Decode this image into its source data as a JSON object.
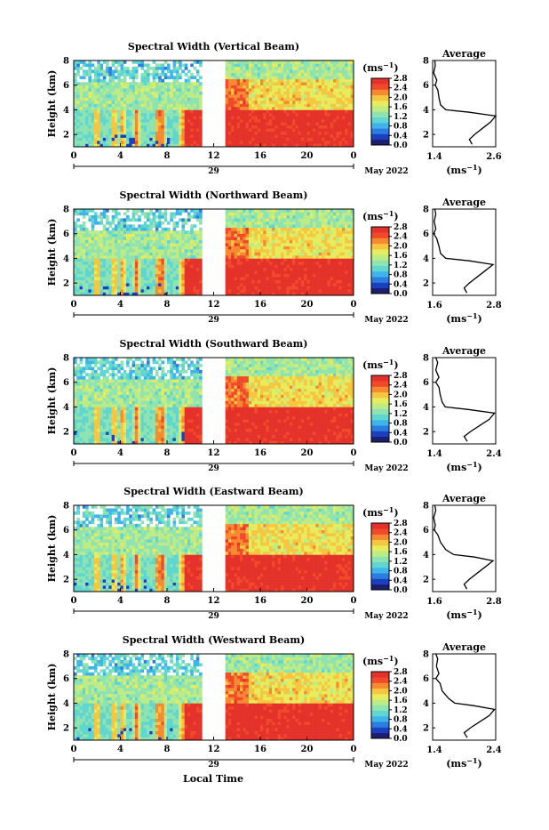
{
  "figure": {
    "xlabel": "Local Time",
    "date_label": "May 2022",
    "day_label": "29",
    "height_label": "Height (km)",
    "unit_label": "(ms",
    "unit_sup": "−1",
    "unit_close": ")",
    "avg_title": "Average"
  },
  "colors": {
    "scale": [
      "#1b1f6e",
      "#1a3fbf",
      "#2b7de0",
      "#3fb4ea",
      "#5fd6d0",
      "#8fe3b0",
      "#bdeb86",
      "#e6ec5c",
      "#f7c640",
      "#f68a30",
      "#f04a2a",
      "#e4322a"
    ],
    "missing": "#ffffff",
    "frame": "#000000"
  },
  "chart_data": [
    {
      "type": "heatmap",
      "title": "Spectral Width (Vertical Beam)",
      "x_ticks": [
        "0",
        "4",
        "8",
        "12",
        "16",
        "20",
        "0"
      ],
      "xlim": [
        0,
        24
      ],
      "y_ticks": [
        "2",
        "4",
        "6",
        "8"
      ],
      "ylim": [
        1,
        8
      ],
      "ylabel": "Height (km)",
      "xlabel": "Local Time",
      "gap_hours": [
        10.9,
        12.9
      ],
      "colorbar": {
        "ticks": [
          "0.0",
          "0.4",
          "0.8",
          "1.2",
          "1.6",
          "2.0",
          "2.4",
          "2.8"
        ],
        "range": [
          0,
          2.8
        ],
        "unit": "ms-1"
      },
      "average_profile": {
        "title": "Average",
        "x_ticks": [
          "1.4",
          "2.6"
        ],
        "xlim": [
          1.4,
          2.6
        ],
        "y_ticks": [
          "2",
          "4",
          "6",
          "8"
        ],
        "ylim": [
          1,
          8
        ],
        "points": [
          [
            2.15,
            1.2
          ],
          [
            2.1,
            1.6
          ],
          [
            2.2,
            2.0
          ],
          [
            2.35,
            2.5
          ],
          [
            2.5,
            3.0
          ],
          [
            2.6,
            3.5
          ],
          [
            2.1,
            3.8
          ],
          [
            1.65,
            4.0
          ],
          [
            1.55,
            4.4
          ],
          [
            1.52,
            5.0
          ],
          [
            1.5,
            5.6
          ],
          [
            1.45,
            6.0
          ],
          [
            1.48,
            6.4
          ],
          [
            1.42,
            7.0
          ],
          [
            1.45,
            7.6
          ],
          [
            1.44,
            8.0
          ]
        ]
      }
    },
    {
      "type": "heatmap",
      "title": "Spectral Width (Northward Beam)",
      "x_ticks": [
        "0",
        "4",
        "8",
        "12",
        "16",
        "20",
        "0"
      ],
      "xlim": [
        0,
        24
      ],
      "y_ticks": [
        "2",
        "4",
        "6",
        "8"
      ],
      "ylim": [
        1,
        8
      ],
      "ylabel": "Height (km)",
      "xlabel": "Local Time",
      "gap_hours": [
        10.9,
        12.9
      ],
      "colorbar": {
        "ticks": [
          "0.0",
          "0.4",
          "0.8",
          "1.2",
          "1.6",
          "2.0",
          "2.4",
          "2.8"
        ],
        "range": [
          0,
          2.8
        ],
        "unit": "ms-1"
      },
      "average_profile": {
        "title": "Average",
        "x_ticks": [
          "1.6",
          "2.8"
        ],
        "xlim": [
          1.6,
          2.8
        ],
        "y_ticks": [
          "2",
          "4",
          "6",
          "8"
        ],
        "ylim": [
          1,
          8
        ],
        "points": [
          [
            2.25,
            1.2
          ],
          [
            2.2,
            1.6
          ],
          [
            2.3,
            2.0
          ],
          [
            2.45,
            2.5
          ],
          [
            2.6,
            3.0
          ],
          [
            2.75,
            3.5
          ],
          [
            2.3,
            3.8
          ],
          [
            1.85,
            4.0
          ],
          [
            1.75,
            4.4
          ],
          [
            1.72,
            5.0
          ],
          [
            1.68,
            5.6
          ],
          [
            1.62,
            6.0
          ],
          [
            1.66,
            6.4
          ],
          [
            1.63,
            7.0
          ],
          [
            1.66,
            7.6
          ],
          [
            1.64,
            8.0
          ]
        ]
      }
    },
    {
      "type": "heatmap",
      "title": "Spectral Width (Southward Beam)",
      "x_ticks": [
        "0",
        "4",
        "8",
        "12",
        "16",
        "20",
        "0"
      ],
      "xlim": [
        0,
        24
      ],
      "y_ticks": [
        "2",
        "4",
        "6",
        "8"
      ],
      "ylim": [
        1,
        8
      ],
      "ylabel": "Height (km)",
      "xlabel": "Local Time",
      "gap_hours": [
        10.9,
        12.9
      ],
      "colorbar": {
        "ticks": [
          "0.0",
          "0.4",
          "0.8",
          "1.2",
          "1.6",
          "2.0",
          "2.4",
          "2.8"
        ],
        "range": [
          0,
          2.8
        ],
        "unit": "ms-1"
      },
      "average_profile": {
        "title": "Average",
        "x_ticks": [
          "1.4",
          "2.4"
        ],
        "xlim": [
          1.4,
          2.4
        ],
        "y_ticks": [
          "2",
          "4",
          "6",
          "8"
        ],
        "ylim": [
          1,
          8
        ],
        "points": [
          [
            1.95,
            1.2
          ],
          [
            1.9,
            1.6
          ],
          [
            2.0,
            2.0
          ],
          [
            2.15,
            2.5
          ],
          [
            2.3,
            3.0
          ],
          [
            2.38,
            3.5
          ],
          [
            1.95,
            3.8
          ],
          [
            1.6,
            4.0
          ],
          [
            1.55,
            4.4
          ],
          [
            1.52,
            5.0
          ],
          [
            1.5,
            5.6
          ],
          [
            1.45,
            6.0
          ],
          [
            1.5,
            6.4
          ],
          [
            1.45,
            7.0
          ],
          [
            1.48,
            7.6
          ],
          [
            1.45,
            8.0
          ]
        ]
      }
    },
    {
      "type": "heatmap",
      "title": "Spectral Width (Eastward Beam)",
      "x_ticks": [
        "0",
        "4",
        "8",
        "12",
        "16",
        "20",
        "0"
      ],
      "xlim": [
        0,
        24
      ],
      "y_ticks": [
        "2",
        "4",
        "6",
        "8"
      ],
      "ylim": [
        1,
        8
      ],
      "ylabel": "Height (km)",
      "xlabel": "Local Time",
      "gap_hours": [
        10.9,
        12.9
      ],
      "colorbar": {
        "ticks": [
          "0.0",
          "0.4",
          "0.8",
          "1.2",
          "1.6",
          "2.0",
          "2.4",
          "2.8"
        ],
        "range": [
          0,
          2.8
        ],
        "unit": "ms-1"
      },
      "average_profile": {
        "title": "Average",
        "x_ticks": [
          "1.6",
          "2.8"
        ],
        "xlim": [
          1.6,
          2.8
        ],
        "y_ticks": [
          "2",
          "4",
          "6",
          "8"
        ],
        "ylim": [
          1,
          8
        ],
        "points": [
          [
            2.25,
            1.2
          ],
          [
            2.2,
            1.6
          ],
          [
            2.3,
            2.0
          ],
          [
            2.45,
            2.5
          ],
          [
            2.6,
            3.0
          ],
          [
            2.75,
            3.5
          ],
          [
            2.4,
            3.8
          ],
          [
            2.0,
            4.0
          ],
          [
            1.85,
            4.4
          ],
          [
            1.75,
            5.0
          ],
          [
            1.7,
            5.6
          ],
          [
            1.63,
            6.0
          ],
          [
            1.65,
            6.4
          ],
          [
            1.62,
            7.0
          ],
          [
            1.66,
            7.6
          ],
          [
            1.64,
            8.0
          ]
        ]
      }
    },
    {
      "type": "heatmap",
      "title": "Spectral Width (Westward Beam)",
      "x_ticks": [
        "0",
        "4",
        "8",
        "12",
        "16",
        "20",
        "0"
      ],
      "xlim": [
        0,
        24
      ],
      "y_ticks": [
        "2",
        "4",
        "6",
        "8"
      ],
      "ylim": [
        1,
        8
      ],
      "ylabel": "Height (km)",
      "xlabel": "Local Time",
      "gap_hours": [
        10.9,
        12.9
      ],
      "colorbar": {
        "ticks": [
          "0.0",
          "0.4",
          "0.8",
          "1.2",
          "1.6",
          "2.0",
          "2.4",
          "2.8"
        ],
        "range": [
          0,
          2.8
        ],
        "unit": "ms-1"
      },
      "average_profile": {
        "title": "Average",
        "x_ticks": [
          "1.4",
          "2.4"
        ],
        "xlim": [
          1.4,
          2.4
        ],
        "y_ticks": [
          "2",
          "4",
          "6",
          "8"
        ],
        "ylim": [
          1,
          8
        ],
        "points": [
          [
            1.95,
            1.2
          ],
          [
            1.9,
            1.6
          ],
          [
            2.0,
            2.0
          ],
          [
            2.15,
            2.5
          ],
          [
            2.3,
            3.0
          ],
          [
            2.38,
            3.5
          ],
          [
            2.05,
            3.8
          ],
          [
            1.75,
            4.0
          ],
          [
            1.65,
            4.4
          ],
          [
            1.55,
            5.0
          ],
          [
            1.52,
            5.6
          ],
          [
            1.45,
            6.0
          ],
          [
            1.5,
            6.4
          ],
          [
            1.46,
            7.0
          ],
          [
            1.48,
            7.6
          ],
          [
            1.45,
            8.0
          ]
        ]
      }
    }
  ]
}
